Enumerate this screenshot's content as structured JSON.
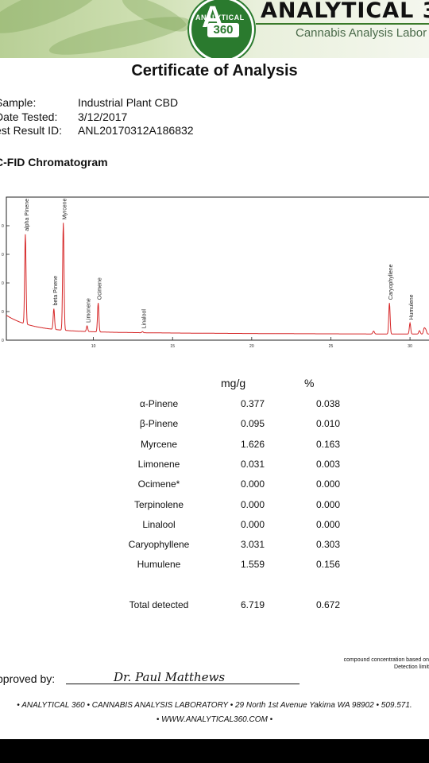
{
  "header": {
    "logo_ring": "ANALYTICAL",
    "logo_number": "360",
    "brand": "ANALYTICAL 3",
    "tagline": "Cannabis Analysis Labor"
  },
  "title": "Certificate of Analysis",
  "meta": {
    "sample_label": "Sample:",
    "sample_value": "Industrial Plant CBD",
    "date_label": "Date Tested:",
    "date_value": "3/12/2017",
    "id_label": "est Result ID:",
    "id_value": "ANL20170312A186832"
  },
  "chromatogram_heading": "C-FID Chromatogram",
  "chart_data": {
    "type": "line",
    "x_ticks": [
      "10",
      "15",
      "20",
      "25",
      "30"
    ],
    "y_ticks": [
      "0",
      "0",
      "0",
      "0",
      "0"
    ],
    "xlim": [
      4.5,
      31.2
    ],
    "ylim": [
      0,
      50
    ],
    "line_color": "#d62728",
    "peaks": [
      {
        "label": "alpha Pinene",
        "x": 5.7,
        "y": 37
      },
      {
        "label": "beta Pinene",
        "x": 7.5,
        "y": 11
      },
      {
        "label": "Myrcene",
        "x": 8.1,
        "y": 41
      },
      {
        "label": "Limonene",
        "x": 9.6,
        "y": 5
      },
      {
        "label": "Ocimene",
        "x": 10.3,
        "y": 13
      },
      {
        "label": "Linalool",
        "x": 13.1,
        "y": 3
      },
      {
        "label": "Caryophyllene",
        "x": 28.7,
        "y": 13
      },
      {
        "label": "Humulene",
        "x": 30.0,
        "y": 6
      }
    ]
  },
  "results": {
    "col_mg": "mg/g",
    "col_pct": "%",
    "rows": [
      {
        "name": "α-Pinene",
        "mg": "0.377",
        "pct": "0.038"
      },
      {
        "name": "β-Pinene",
        "mg": "0.095",
        "pct": "0.010"
      },
      {
        "name": "Myrcene",
        "mg": "1.626",
        "pct": "0.163"
      },
      {
        "name": "Limonene",
        "mg": "0.031",
        "pct": "0.003"
      },
      {
        "name": "Ocimene*",
        "mg": "0.000",
        "pct": "0.000"
      },
      {
        "name": "Terpinolene",
        "mg": "0.000",
        "pct": "0.000"
      },
      {
        "name": "Linalool",
        "mg": "0.000",
        "pct": "0.000"
      },
      {
        "name": "Caryophyllene",
        "mg": "3.031",
        "pct": "0.303"
      },
      {
        "name": "Humulene",
        "mg": "1.559",
        "pct": "0.156"
      }
    ],
    "total": {
      "name": "Total detected",
      "mg": "6.719",
      "pct": "0.672"
    }
  },
  "footnote": {
    "line1": "compound concentration based on",
    "line2": "Detection limit"
  },
  "approval": {
    "label": "pproved by:",
    "signature": "Dr. Paul Matthews"
  },
  "footer": {
    "address": "• ANALYTICAL 360 • CANNABIS ANALYSIS LABORATORY • 29 North 1st Avenue Yakima WA 98902 • 509.571.",
    "website": "• WWW.ANALYTICAL360.COM •"
  }
}
